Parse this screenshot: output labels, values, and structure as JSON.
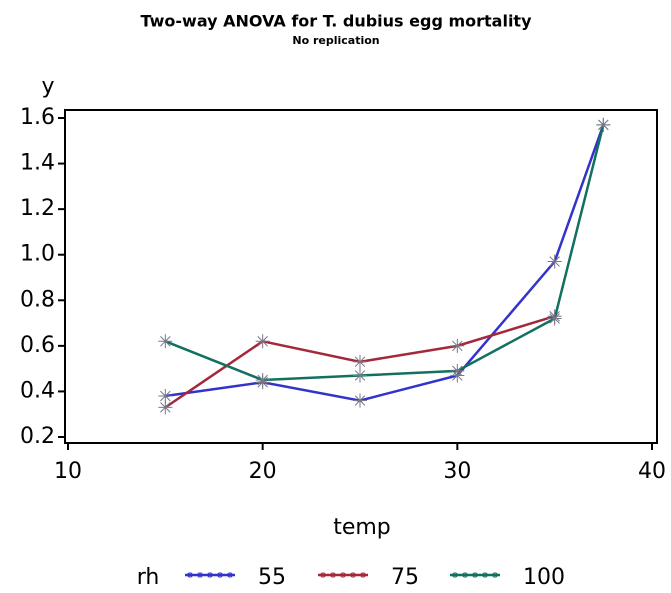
{
  "chart_data": {
    "type": "line",
    "title": "Two-way ANOVA for T. dubius egg mortality",
    "subtitle": "No replication",
    "x_label": "temp",
    "y_label": "y",
    "x": [
      15,
      20,
      25,
      30,
      35,
      37.5
    ],
    "series": [
      {
        "name": "55",
        "color": "#3333cc",
        "values": [
          0.38,
          0.44,
          0.36,
          0.47,
          0.97,
          1.57
        ]
      },
      {
        "name": "75",
        "color": "#a3283c",
        "values": [
          0.33,
          0.62,
          0.53,
          0.6,
          0.73,
          null
        ]
      },
      {
        "name": "100",
        "color": "#127060",
        "values": [
          0.62,
          0.45,
          0.47,
          0.49,
          0.72,
          1.57
        ]
      }
    ],
    "legend_title": "rh",
    "xlim": [
      10,
      40
    ],
    "xticks": [
      10,
      20,
      30,
      40
    ],
    "ylim": [
      0.2,
      1.6
    ],
    "yticks": [
      {
        "value": 0.2,
        "label": "0.2"
      },
      {
        "value": 0.4,
        "label": "0.4"
      },
      {
        "value": 0.6,
        "label": "0.6"
      },
      {
        "value": 0.8,
        "label": "0.8"
      },
      {
        "value": 1.0,
        "label": "1.0"
      },
      {
        "value": 1.2,
        "label": "1.2"
      },
      {
        "value": 1.4,
        "label": "1.4"
      },
      {
        "value": 1.6,
        "label": "1.6"
      }
    ],
    "legend_position": "bottom",
    "grid": false
  }
}
